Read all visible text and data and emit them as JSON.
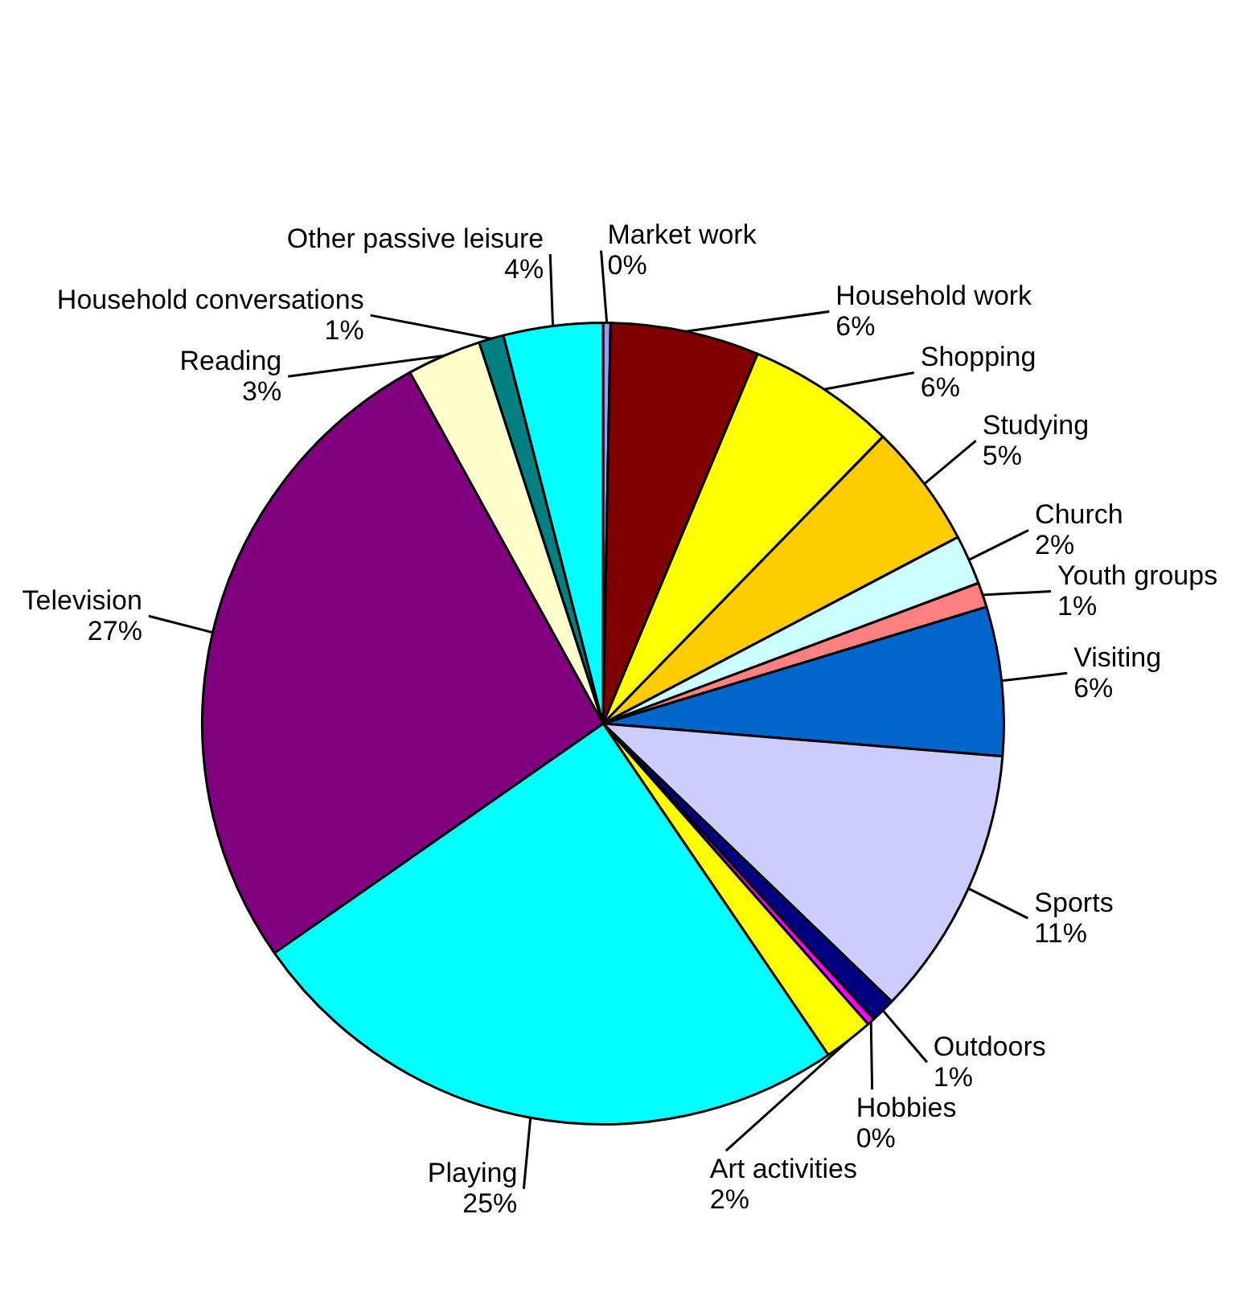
{
  "chart_data": {
    "type": "pie",
    "categories": [
      "Market work",
      "Household work",
      "Shopping",
      "Studying",
      "Church",
      "Youth groups",
      "Visiting",
      "Sports",
      "Outdoors",
      "Hobbies",
      "Art activities",
      "Playing",
      "Television",
      "Reading",
      "Household conversations",
      "Other passive leisure"
    ],
    "values": [
      0.3,
      6,
      6,
      5,
      2,
      1,
      6,
      10.9,
      1,
      0.3,
      2,
      24.8,
      26.7,
      3,
      1,
      4
    ],
    "value_labels": [
      "0%",
      "6%",
      "6%",
      "5%",
      "2%",
      "1%",
      "6%",
      "11%",
      "1%",
      "0%",
      "2%",
      "25%",
      "27%",
      "3%",
      "1%",
      "4%"
    ],
    "colors": [
      "#9999ff",
      "#800000",
      "#ffff00",
      "#ffcc00",
      "#ccffff",
      "#ff8080",
      "#0066cc",
      "#ccccff",
      "#000080",
      "#ff00ff",
      "#ffff00",
      "#00ffff",
      "#800080",
      "#ffffcc",
      "#008080",
      "#00ffff"
    ],
    "legend": false
  }
}
